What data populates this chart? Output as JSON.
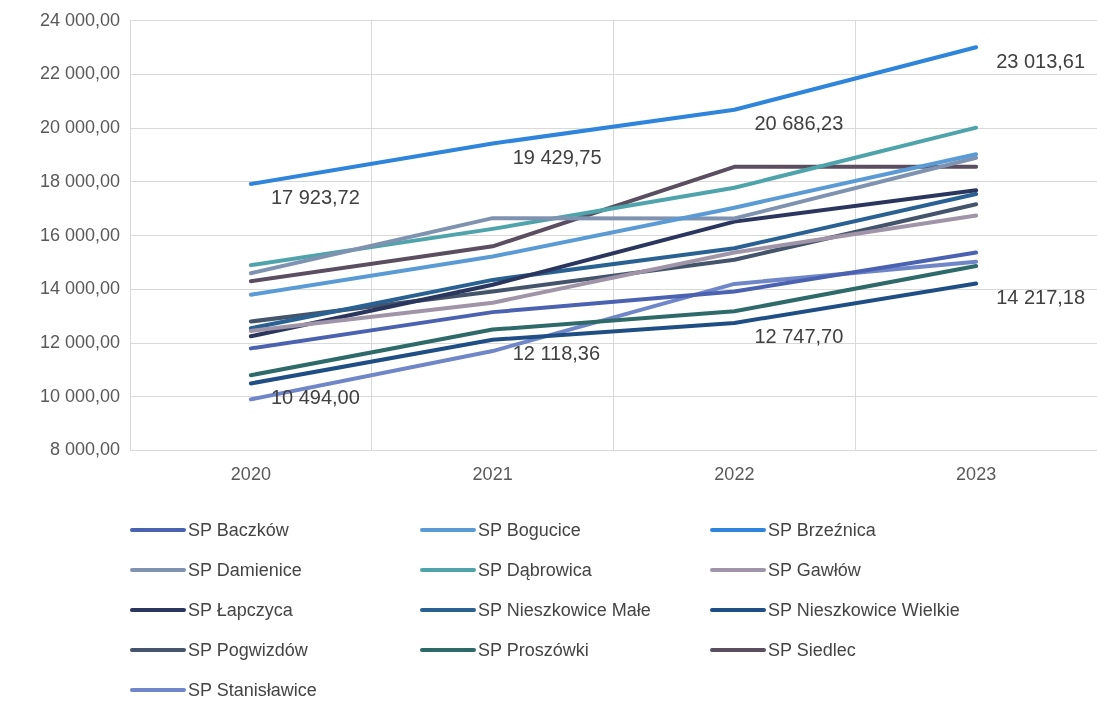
{
  "chart_data": {
    "type": "line",
    "categories": [
      "2020",
      "2021",
      "2022",
      "2023"
    ],
    "ylim": [
      8000,
      24000
    ],
    "yticks": [
      {
        "value": 8000,
        "label": "8 000,00"
      },
      {
        "value": 10000,
        "label": "10 000,00"
      },
      {
        "value": 12000,
        "label": "12 000,00"
      },
      {
        "value": 14000,
        "label": "14 000,00"
      },
      {
        "value": 16000,
        "label": "16 000,00"
      },
      {
        "value": 18000,
        "label": "18 000,00"
      },
      {
        "value": 20000,
        "label": "20 000,00"
      },
      {
        "value": 22000,
        "label": "22 000,00"
      },
      {
        "value": 24000,
        "label": "24 000,00"
      }
    ],
    "grid": true,
    "legend": "bottom",
    "marker": "none",
    "line_style": "solid",
    "series": [
      {
        "name": "SP Baczków",
        "color": "#4a62b0",
        "values": [
          11800,
          13150,
          13920,
          15370
        ]
      },
      {
        "name": "SP Bogucice",
        "color": "#5b9bd5",
        "values": [
          13800,
          15220,
          17040,
          19030
        ]
      },
      {
        "name": "SP Brzeźnica",
        "color": "#2f84db",
        "values": [
          17923.72,
          19429.75,
          20686.23,
          23013.61
        ],
        "value_labels": [
          "17 923,72",
          "19 429,75",
          "20 686,23",
          "23 013,61"
        ]
      },
      {
        "name": "SP Damienice",
        "color": "#7f93b0",
        "values": [
          14600,
          16650,
          16640,
          18900
        ]
      },
      {
        "name": "SP Dąbrowica",
        "color": "#4fa3ab",
        "values": [
          14900,
          16250,
          17780,
          20020
        ]
      },
      {
        "name": "SP Gawłów",
        "color": "#a094a8",
        "values": [
          12450,
          13500,
          15370,
          16750
        ]
      },
      {
        "name": "SP Łapczyca",
        "color": "#2b365e",
        "values": [
          12250,
          14170,
          16520,
          17690
        ]
      },
      {
        "name": "SP Nieszkowice Małe",
        "color": "#2a6193",
        "values": [
          12550,
          14350,
          15530,
          17550
        ]
      },
      {
        "name": "SP Nieszkowice Wielkie",
        "color": "#1f4e85",
        "values": [
          10494,
          12118.36,
          12747.7,
          14217.18
        ],
        "value_labels": [
          "10 494,00",
          "12 118,36",
          "12 747,70",
          "14 217,18"
        ]
      },
      {
        "name": "SP Pogwizdów",
        "color": "#44546a",
        "values": [
          12800,
          13920,
          15100,
          17170
        ]
      },
      {
        "name": "SP Proszówki",
        "color": "#2f6a6a",
        "values": [
          10800,
          12500,
          13180,
          14870
        ]
      },
      {
        "name": "SP Siedlec",
        "color": "#5a4e60",
        "values": [
          14300,
          15600,
          18560,
          18560
        ]
      },
      {
        "name": "SP Stanisławice",
        "color": "#6f86c8",
        "values": [
          9900,
          11700,
          14200,
          15030
        ]
      }
    ]
  }
}
